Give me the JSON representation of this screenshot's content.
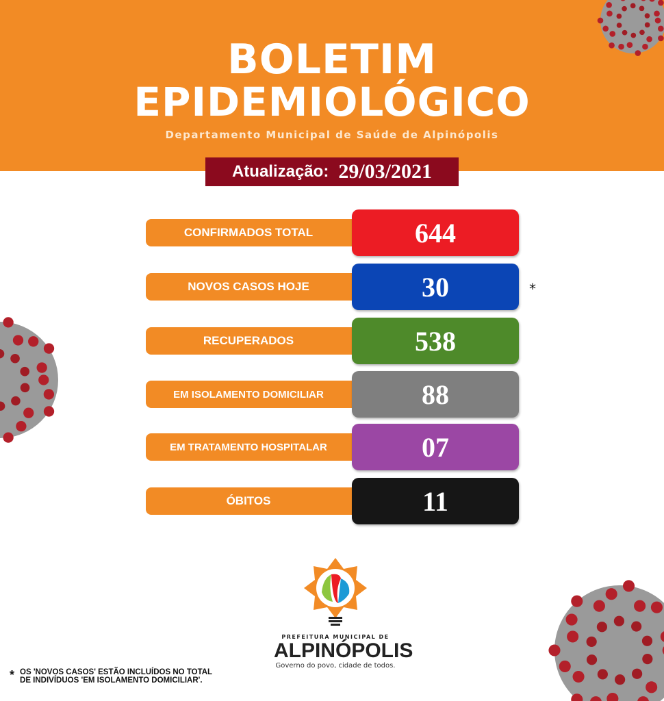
{
  "header": {
    "title_line1": "BOLETIM",
    "title_line2": "EPIDEMIOLÓGICO",
    "subtitle": "Departamento Municipal de Saúde de Alpinópolis"
  },
  "update": {
    "label": "Atualização:",
    "date": "29/03/2021"
  },
  "stats": [
    {
      "label": "CONFIRMADOS TOTAL",
      "value": "644",
      "color": "#ec1c24"
    },
    {
      "label": "NOVOS CASOS HOJE",
      "value": "30",
      "color": "#0b45b5"
    },
    {
      "label": "RECUPERADOS",
      "value": "538",
      "color": "#4e8a2a"
    },
    {
      "label": "EM ISOLAMENTO DOMICILIAR",
      "value": "88",
      "color": "#7f7f7f"
    },
    {
      "label": "EM TRATAMENTO HOSPITALAR",
      "value": "07",
      "color": "#9b47a4"
    },
    {
      "label": "ÓBITOS",
      "value": "11",
      "color": "#161616"
    }
  ],
  "asterisk": "*",
  "footnote": {
    "line1": "OS 'NOVOS CASOS' ESTÃO INCLUÍDOS NO TOTAL",
    "line2": "DE  INDIVÍDUOS  'EM ISOLAMENTO DOMICILIAR'."
  },
  "logo": {
    "prefix": "PREFEITURA MUNICIPAL DE",
    "name": "ALPINÓPOLIS",
    "slogan": "Governo do povo, cidade de todos."
  },
  "colors": {
    "header_orange": "#f28b25",
    "date_bg": "#8b0a1e"
  }
}
